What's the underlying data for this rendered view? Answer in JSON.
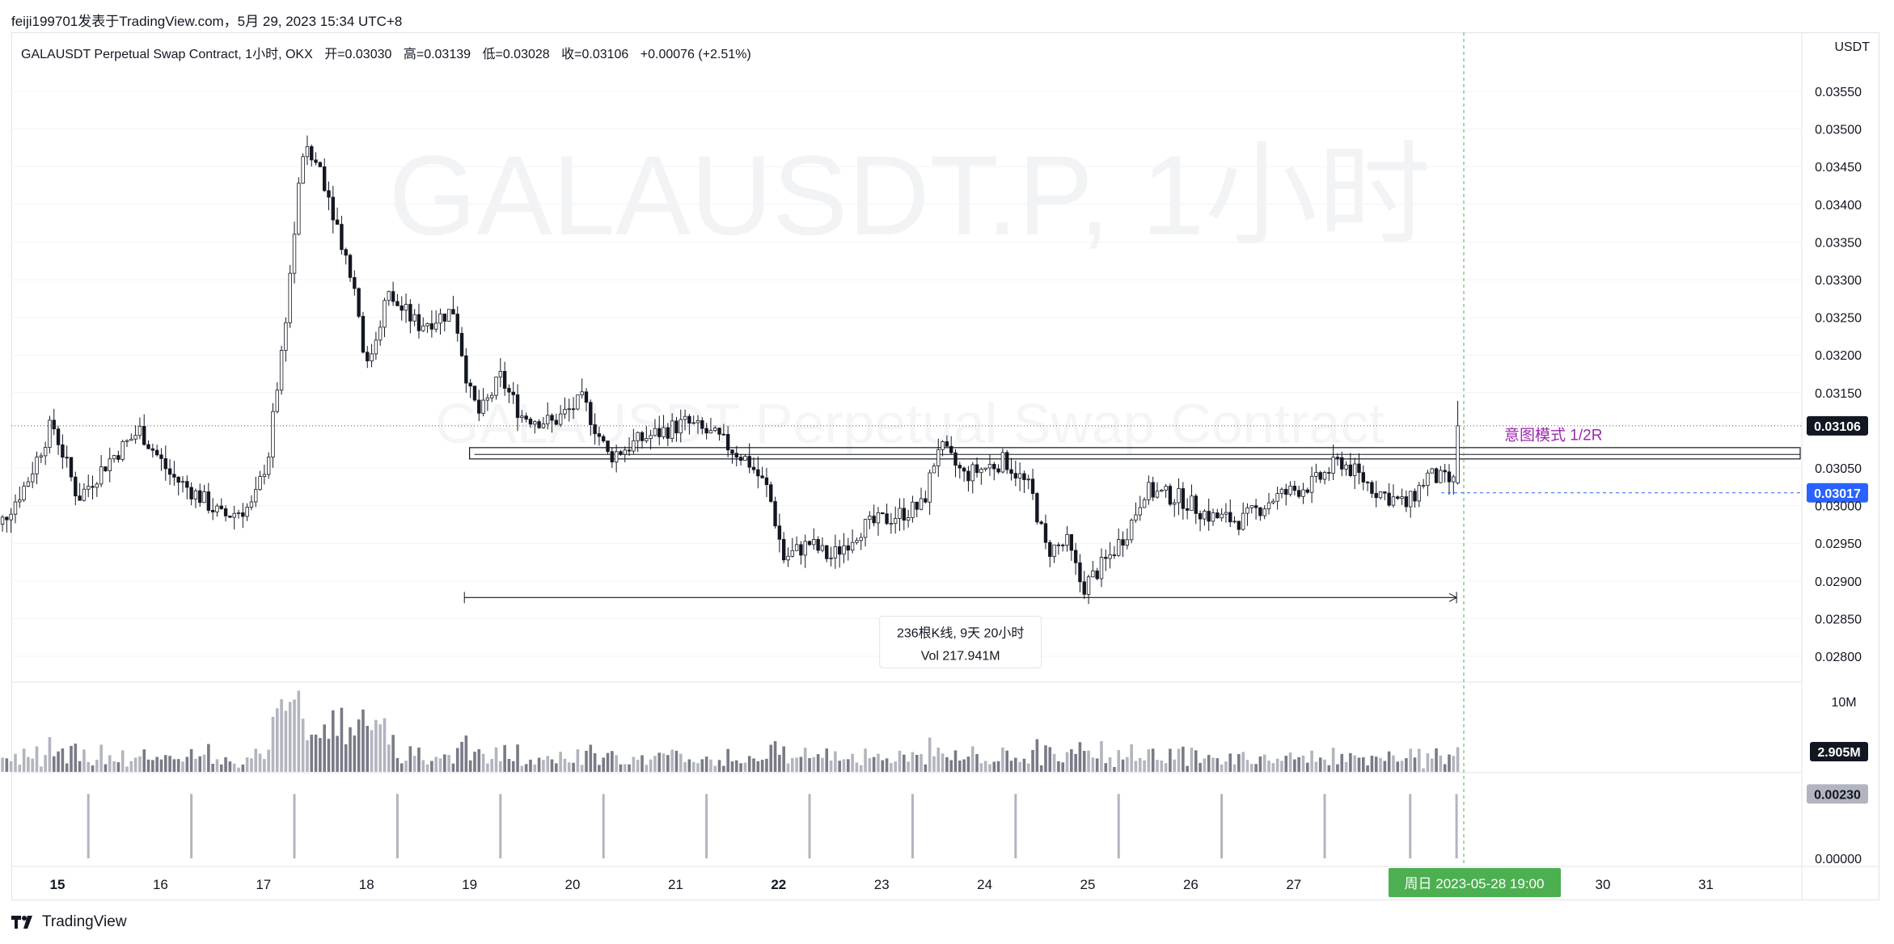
{
  "header": {
    "publisher_line": "feiji199701发表于TradingView.com，5月 29, 2023 15:34 UTC+8"
  },
  "legend": {
    "symbol": "GALAUSDT Perpetual Swap Contract, 1小时, OKX",
    "open": "开=0.03030",
    "high": "高=0.03139",
    "low": "低=0.03028",
    "close": "收=0.03106",
    "change": "+0.00076 (+2.51%)"
  },
  "watermark": {
    "main": "GALAUSDT.P, 1小时",
    "sub": "GALAUSDT Perpetual Swap Contract"
  },
  "price_axis": {
    "currency": "USDT",
    "ticks": [
      "0.03550",
      "0.03500",
      "0.03450",
      "0.03400",
      "0.03350",
      "0.03300",
      "0.03250",
      "0.03200",
      "0.03150",
      "0.03050",
      "0.03000",
      "0.02950",
      "0.02900",
      "0.02850",
      "0.02800"
    ],
    "last_price_label": "0.03106",
    "crosshair_price_label": "0.03017"
  },
  "volume_axis": {
    "tick": "10M",
    "last_label": "2.905M"
  },
  "indicator_axis": {
    "ticks": [
      "0.00230",
      "0.00000"
    ],
    "last_label": "0.00230"
  },
  "time_axis": {
    "ticks": [
      "15",
      "16",
      "17",
      "18",
      "19",
      "20",
      "21",
      "22",
      "23",
      "24",
      "25",
      "26",
      "27",
      "30",
      "31"
    ],
    "crosshair_label": "周日 2023-05-28   19:00"
  },
  "annotations": {
    "pattern_label": "意图模式 1/2R",
    "range_bars": "236根K线, 9天 20小时",
    "range_volume": "Vol 217.941M"
  },
  "colors": {
    "candle": "#131722",
    "volume_up": "#b2b5be",
    "volume_down": "#787b86",
    "crosshair": "#2962ff",
    "time_marker": "#4caf50",
    "pattern_label": "#9c27b0",
    "watermark": "#f2f3f5"
  },
  "footer": {
    "brand": "TradingView"
  },
  "chart_data": {
    "type": "candlestick",
    "symbol": "GALAUSDT.P",
    "timeframe": "1小时",
    "ylim": [
      0.0277,
      0.0358
    ],
    "ohlc_last": {
      "open": 0.0303,
      "high": 0.03139,
      "low": 0.03028,
      "close": 0.03106
    },
    "close_anchors": [
      {
        "day": 14.3,
        "v": 0.02945
      },
      {
        "day": 14.7,
        "v": 0.0303
      },
      {
        "day": 14.95,
        "v": 0.0311
      },
      {
        "day": 15.2,
        "v": 0.0301
      },
      {
        "day": 15.5,
        "v": 0.0306
      },
      {
        "day": 15.8,
        "v": 0.031
      },
      {
        "day": 16.1,
        "v": 0.0304
      },
      {
        "day": 16.4,
        "v": 0.0301
      },
      {
        "day": 16.6,
        "v": 0.02985
      },
      {
        "day": 16.9,
        "v": 0.03
      },
      {
        "day": 17.05,
        "v": 0.0307
      },
      {
        "day": 17.2,
        "v": 0.0323
      },
      {
        "day": 17.38,
        "v": 0.0347
      },
      {
        "day": 17.55,
        "v": 0.0345
      },
      {
        "day": 17.7,
        "v": 0.0338
      },
      {
        "day": 17.9,
        "v": 0.0328
      },
      {
        "day": 18.0,
        "v": 0.0318
      },
      {
        "day": 18.2,
        "v": 0.0328
      },
      {
        "day": 18.5,
        "v": 0.0324
      },
      {
        "day": 18.7,
        "v": 0.0325
      },
      {
        "day": 18.85,
        "v": 0.0326
      },
      {
        "day": 19.0,
        "v": 0.0315
      },
      {
        "day": 19.1,
        "v": 0.0312
      },
      {
        "day": 19.3,
        "v": 0.0317
      },
      {
        "day": 19.5,
        "v": 0.0312
      },
      {
        "day": 19.8,
        "v": 0.0311
      },
      {
        "day": 20.1,
        "v": 0.0314
      },
      {
        "day": 20.35,
        "v": 0.03065
      },
      {
        "day": 20.7,
        "v": 0.0309
      },
      {
        "day": 21.1,
        "v": 0.0311
      },
      {
        "day": 21.4,
        "v": 0.0309
      },
      {
        "day": 21.7,
        "v": 0.0306
      },
      {
        "day": 21.9,
        "v": 0.0302
      },
      {
        "day": 22.05,
        "v": 0.0293
      },
      {
        "day": 22.3,
        "v": 0.0295
      },
      {
        "day": 22.5,
        "v": 0.0293
      },
      {
        "day": 22.8,
        "v": 0.0297
      },
      {
        "day": 23.2,
        "v": 0.0299
      },
      {
        "day": 23.4,
        "v": 0.03
      },
      {
        "day": 23.55,
        "v": 0.0308
      },
      {
        "day": 23.8,
        "v": 0.0304
      },
      {
        "day": 24.2,
        "v": 0.0306
      },
      {
        "day": 24.45,
        "v": 0.0302
      },
      {
        "day": 24.6,
        "v": 0.0294
      },
      {
        "day": 24.8,
        "v": 0.0295
      },
      {
        "day": 24.95,
        "v": 0.0289
      },
      {
        "day": 25.2,
        "v": 0.0293
      },
      {
        "day": 25.4,
        "v": 0.0297
      },
      {
        "day": 25.55,
        "v": 0.0302
      },
      {
        "day": 25.9,
        "v": 0.0301
      },
      {
        "day": 26.2,
        "v": 0.02985
      },
      {
        "day": 26.5,
        "v": 0.0298
      },
      {
        "day": 26.8,
        "v": 0.0301
      },
      {
        "day": 27.2,
        "v": 0.0303
      },
      {
        "day": 27.45,
        "v": 0.0306
      },
      {
        "day": 27.8,
        "v": 0.0302
      },
      {
        "day": 28.1,
        "v": 0.03
      },
      {
        "day": 28.3,
        "v": 0.0304
      },
      {
        "day": 28.55,
        "v": 0.0303
      },
      {
        "day": 28.6,
        "v": 0.03106
      }
    ],
    "horizontal_levels": [
      0.03077,
      0.03068,
      0.03062
    ],
    "pattern_range": {
      "from_day": 18.95,
      "to_day": 28.58,
      "price": 0.02878
    },
    "volume_ylim": [
      0,
      10
    ],
    "volume_unit": "M",
    "indicator_ylim": [
      0,
      0.0026
    ],
    "indicator_spikes": [
      15.3,
      16.3,
      17.3,
      18.3,
      19.3,
      20.3,
      21.3,
      22.3,
      23.3,
      24.3,
      25.3,
      26.3,
      27.3,
      28.13,
      28.58
    ]
  }
}
